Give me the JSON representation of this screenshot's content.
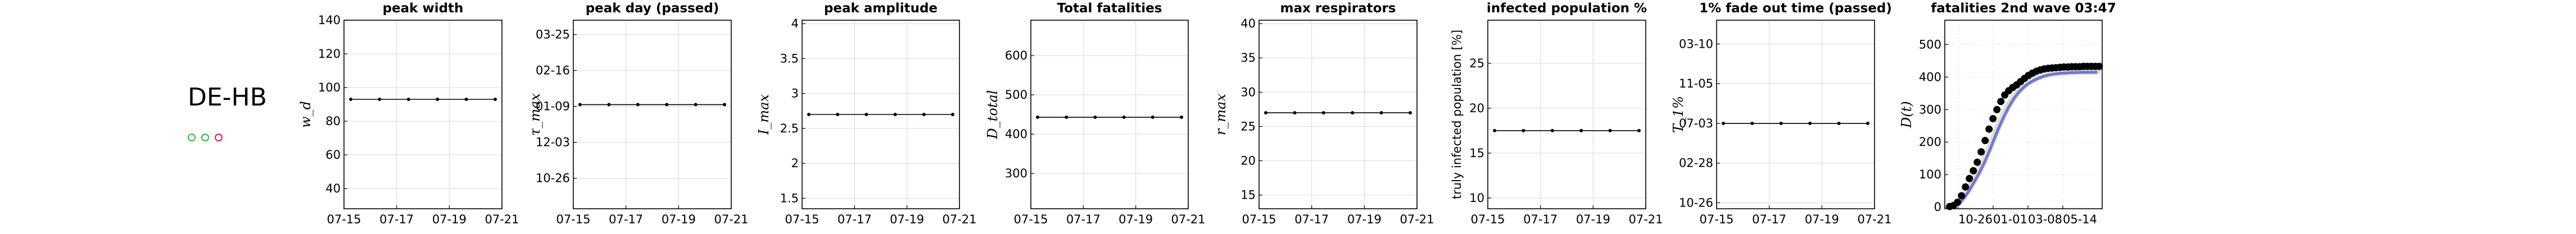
{
  "region": "DE-HB",
  "status_dots": [
    "#3cb44b",
    "#3cb44b",
    "#e6194b"
  ],
  "chart_data": [
    {
      "id": "w",
      "type": "line",
      "title": "peak width",
      "ylabel": "w_d",
      "ylabel_tex": true,
      "xticks": [
        "07-15",
        "07-17",
        "07-19",
        "07-21"
      ],
      "x": [
        0,
        1,
        2,
        3,
        4,
        5
      ],
      "yticks": [
        40,
        60,
        80,
        100,
        120,
        140
      ],
      "ylim": [
        28,
        140
      ],
      "series": [
        {
          "values": [
            93,
            93,
            93,
            93,
            93,
            93
          ]
        }
      ]
    },
    {
      "id": "tau",
      "type": "line",
      "title": "peak day (passed)",
      "ylabel": "τ_max",
      "ylabel_tex": true,
      "xticks": [
        "07-15",
        "07-17",
        "07-19",
        "07-21"
      ],
      "x": [
        0,
        1,
        2,
        3,
        4,
        5
      ],
      "yticks": [
        "10-26",
        "12-03",
        "01-09",
        "02-16",
        "03-25"
      ],
      "ylim": [
        -0.85,
        4.4
      ],
      "series": [
        {
          "values": [
            2.05,
            2.05,
            2.05,
            2.05,
            2.05,
            2.05
          ]
        }
      ]
    },
    {
      "id": "amp",
      "type": "line",
      "title": "peak amplitude",
      "ylabel": "I_max",
      "ylabel_tex": true,
      "xticks": [
        "07-15",
        "07-17",
        "07-19",
        "07-21"
      ],
      "x": [
        0,
        1,
        2,
        3,
        4,
        5
      ],
      "yticks": [
        1.5,
        2,
        2.5,
        3,
        3.5,
        4
      ],
      "ylim": [
        1.35,
        4.05
      ],
      "series": [
        {
          "values": [
            2.7,
            2.7,
            2.7,
            2.7,
            2.7,
            2.7
          ]
        }
      ]
    },
    {
      "id": "fat",
      "type": "line",
      "title": "Total fatalities",
      "ylabel": "D_total",
      "ylabel_tex": true,
      "xticks": [
        "07-15",
        "07-17",
        "07-19",
        "07-21"
      ],
      "x": [
        0,
        1,
        2,
        3,
        4,
        5
      ],
      "yticks": [
        300,
        400,
        500,
        600
      ],
      "ylim": [
        210,
        690
      ],
      "series": [
        {
          "values": [
            443,
            443,
            443,
            443,
            443,
            443
          ]
        }
      ]
    },
    {
      "id": "resp",
      "type": "line",
      "title": "max respirators",
      "ylabel": "r_max",
      "ylabel_tex": true,
      "xticks": [
        "07-15",
        "07-17",
        "07-19",
        "07-21"
      ],
      "x": [
        0,
        1,
        2,
        3,
        4,
        5
      ],
      "yticks": [
        15,
        20,
        25,
        30,
        35,
        40
      ],
      "ylim": [
        13,
        40.5
      ],
      "series": [
        {
          "values": [
            27,
            27,
            27,
            27,
            27,
            27
          ]
        }
      ]
    },
    {
      "id": "inf",
      "type": "line",
      "title": "infected population %",
      "ylabel": "truly infected population [%]",
      "ylabel_tex": false,
      "xticks": [
        "07-15",
        "07-17",
        "07-19",
        "07-21"
      ],
      "x": [
        0,
        1,
        2,
        3,
        4,
        5
      ],
      "yticks": [
        10,
        15,
        20,
        25
      ],
      "ylim": [
        8.8,
        29.8
      ],
      "series": [
        {
          "values": [
            17.5,
            17.5,
            17.5,
            17.5,
            17.5,
            17.5
          ]
        }
      ]
    },
    {
      "id": "fade",
      "type": "line",
      "title": "1% fade out time (passed)",
      "ylabel": "T_1%",
      "ylabel_tex": true,
      "xticks": [
        "07-15",
        "07-17",
        "07-19",
        "07-21"
      ],
      "x": [
        0,
        1,
        2,
        3,
        4,
        5
      ],
      "yticks": [
        "10-26",
        "02-28",
        "07-03",
        "11-05",
        "03-10"
      ],
      "ylim": [
        -0.15,
        4.6
      ],
      "series": [
        {
          "values": [
            2,
            2,
            2,
            2,
            2,
            2
          ]
        }
      ]
    },
    {
      "id": "wave",
      "type": "scatter",
      "title": "fatalities 2nd wave 03:47",
      "ylabel": "D(t)",
      "ylabel_tex": true,
      "xticks": [
        "10-26",
        "01-01",
        "03-08",
        "05-14"
      ],
      "xlim": [
        -10,
        310
      ],
      "yticks": [
        0,
        100,
        200,
        300,
        400,
        500
      ],
      "ylim": [
        -5,
        575
      ],
      "series": [
        {
          "role": "observed",
          "color": "#000000",
          "x": [
            0,
            8,
            16,
            24,
            32,
            40,
            48,
            56,
            64,
            72,
            80,
            88,
            96,
            104,
            112,
            120,
            128,
            136,
            144,
            152,
            160,
            168,
            176,
            184,
            192,
            200,
            208,
            216,
            224,
            232,
            240,
            248,
            256,
            264,
            272,
            280,
            288,
            296,
            304
          ],
          "values": [
            2,
            5,
            15,
            35,
            62,
            88,
            112,
            138,
            170,
            205,
            240,
            272,
            300,
            325,
            345,
            358,
            368,
            376,
            386,
            396,
            405,
            412,
            418,
            422,
            425,
            427,
            428,
            429,
            430,
            431,
            431,
            432,
            432,
            432,
            433,
            433,
            433,
            433,
            433
          ]
        },
        {
          "role": "model",
          "color": "#7b6fe0",
          "x": [
            0,
            10,
            20,
            30,
            40,
            50,
            60,
            70,
            80,
            90,
            100,
            110,
            120,
            130,
            140,
            150,
            160,
            170,
            180,
            190,
            200,
            210,
            220,
            230,
            240,
            250,
            260,
            270,
            280,
            290,
            300
          ],
          "values": [
            0,
            3,
            12,
            30,
            52,
            78,
            105,
            135,
            170,
            208,
            245,
            278,
            308,
            333,
            353,
            368,
            380,
            389,
            396,
            402,
            406,
            409,
            411,
            412,
            413,
            414,
            414,
            415,
            415,
            415,
            415
          ]
        },
        {
          "role": "model-spread",
          "color": "#cfe3c5",
          "x": [
            0,
            20,
            40,
            60,
            80,
            100,
            120,
            140,
            160,
            180,
            200,
            220,
            240,
            260,
            280,
            300
          ],
          "values": [
            0,
            15,
            58,
            112,
            178,
            252,
            315,
            358,
            385,
            400,
            410,
            414,
            416,
            417,
            417,
            418
          ]
        }
      ]
    }
  ]
}
